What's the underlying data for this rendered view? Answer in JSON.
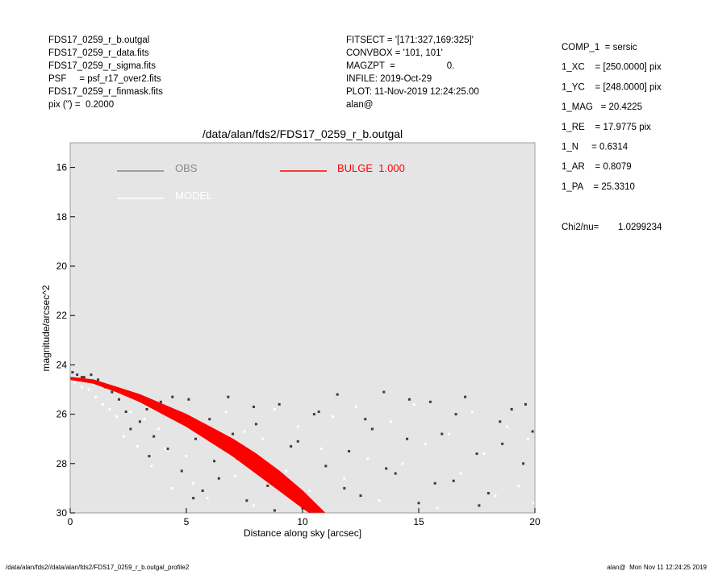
{
  "header": {
    "left": [
      "FDS17_0259_r_b.outgal",
      "FDS17_0259_r_data.fits",
      "FDS17_0259_r_sigma.fits",
      "PSF     = psf_r17_over2.fits",
      "FDS17_0259_r_finmask.fits",
      "pix (\") =  0.2000"
    ],
    "middle": [
      "FITSECT = '[171:327,169:325]'",
      "CONVBOX = '101, 101'",
      "MAGZPT  =                    0.",
      "INFILE: 2019-Oct-29",
      "PLOT: 11-Nov-2019 12:24:25.00",
      "alan@"
    ],
    "params": [
      "COMP_1  = sersic",
      "1_XC    = [250.0000] pix",
      "1_YC    = [248.0000] pix",
      "1_MAG   = 20.4225",
      "1_RE    = 17.9775 pix",
      "1_N     = 0.6314",
      "1_AR    = 0.8079",
      "1_PA    = 25.3310"
    ],
    "chi2_label": "Chi2/nu=",
    "chi2_value": "1.0299234"
  },
  "footer": {
    "left": "/data/alan/fds2//data/alan/fds2/FDS17_0259_r_b.outgal_profile2",
    "right": "alan@  Mon Nov 11 12:24:25 2019"
  },
  "chart_data": {
    "type": "scatter",
    "title": "/data/alan/fds2/FDS17_0259_r_b.outgal",
    "x_label": "Distance along sky [arcsec]",
    "y_label": "magnitude/arcsec^2",
    "xlim": [
      0,
      20
    ],
    "ylim": [
      30,
      15
    ],
    "xticks": [
      0,
      5,
      10,
      15,
      20
    ],
    "yticks": [
      16,
      18,
      20,
      22,
      24,
      26,
      28,
      30
    ],
    "background": "#e5e5e5",
    "series": [
      {
        "name": "OBS",
        "color": "#888888",
        "point_color": "#3a3a3a",
        "x": [
          0.1,
          0.3,
          0.6,
          0.9,
          1.2,
          1.5,
          1.8,
          2.1,
          2.4,
          2.7,
          3.0,
          3.3,
          3.6,
          3.9,
          4.2,
          4.5,
          4.8,
          5.1,
          5.4,
          5.7,
          6.0,
          6.4,
          6.8,
          7.2,
          7.6,
          8.0,
          8.5,
          9.0,
          9.5,
          10.0,
          10.5,
          11.0,
          11.5,
          12.0,
          12.5,
          13.0,
          13.5,
          14.0,
          14.5,
          15.0,
          15.5,
          16.0,
          16.5,
          17.0,
          17.5,
          18.0,
          18.5,
          19.0,
          19.5,
          19.9,
          0.5,
          1.4,
          2.6,
          3.4,
          4.4,
          5.3,
          6.2,
          7.0,
          7.9,
          8.8,
          9.8,
          10.7,
          11.8,
          12.7,
          13.6,
          14.6,
          15.7,
          16.6,
          17.6,
          18.6,
          19.6
        ],
        "values": [
          24.3,
          24.4,
          24.5,
          24.4,
          24.6,
          24.9,
          25.1,
          25.4,
          25.9,
          25.2,
          26.3,
          25.8,
          26.9,
          25.5,
          27.4,
          26.1,
          28.3,
          25.4,
          27.0,
          29.1,
          26.2,
          28.6,
          25.3,
          27.8,
          29.5,
          26.4,
          28.9,
          25.6,
          27.3,
          29.8,
          26.0,
          28.1,
          25.2,
          27.5,
          29.3,
          26.6,
          25.1,
          28.4,
          27.0,
          29.6,
          25.5,
          26.8,
          28.7,
          25.3,
          27.6,
          29.2,
          26.3,
          25.8,
          28.0,
          26.7,
          24.5,
          24.8,
          26.6,
          27.7,
          25.3,
          29.4,
          27.9,
          26.8,
          25.7,
          29.9,
          27.1,
          25.9,
          29.0,
          26.2,
          28.2,
          25.4,
          28.8,
          26.0,
          29.7,
          27.2,
          25.6
        ]
      },
      {
        "name": "MODEL",
        "color": "#ffffff",
        "point_color": "#ffffff",
        "x": [
          0.2,
          0.5,
          0.8,
          1.1,
          1.4,
          1.7,
          2.0,
          2.3,
          2.6,
          2.9,
          3.2,
          3.5,
          3.8,
          4.1,
          4.4,
          4.7,
          5.0,
          5.3,
          5.6,
          5.9,
          6.3,
          6.7,
          7.1,
          7.5,
          7.9,
          8.3,
          8.8,
          9.3,
          9.8,
          10.3,
          10.8,
          11.3,
          11.8,
          12.3,
          12.8,
          13.3,
          13.8,
          14.3,
          14.8,
          15.3,
          15.8,
          16.3,
          16.8,
          17.3,
          17.8,
          18.3,
          18.8,
          19.3,
          19.7,
          19.95
        ],
        "values": [
          24.7,
          24.9,
          25.0,
          25.3,
          25.6,
          25.8,
          26.1,
          26.9,
          25.9,
          27.3,
          26.2,
          28.1,
          26.6,
          27.4,
          29.0,
          26.0,
          27.7,
          28.8,
          26.4,
          29.4,
          27.2,
          25.9,
          28.5,
          26.7,
          29.7,
          27.0,
          25.8,
          28.3,
          26.5,
          29.1,
          27.4,
          26.1,
          28.6,
          25.7,
          27.8,
          29.5,
          26.3,
          28.0,
          25.6,
          27.2,
          29.8,
          26.8,
          28.4,
          25.9,
          27.6,
          29.3,
          26.5,
          28.9,
          27.0,
          29.6
        ]
      },
      {
        "name": "BULGE  1.000",
        "color": "#ff0000",
        "x": [
          0,
          1,
          2,
          3,
          4,
          5,
          6,
          7,
          8,
          9,
          10,
          10.97
        ],
        "values": [
          24.5,
          24.6,
          24.9,
          25.2,
          25.6,
          26.0,
          26.5,
          27.0,
          27.6,
          28.3,
          29.1,
          30
        ],
        "x_faint": [
          0,
          1,
          2,
          3,
          4,
          5,
          6,
          7,
          8,
          9,
          10,
          10.3
        ],
        "values_faint": [
          24.6,
          24.75,
          25.1,
          25.5,
          26.0,
          26.5,
          27.1,
          27.7,
          28.4,
          29.1,
          29.8,
          30
        ]
      }
    ]
  }
}
